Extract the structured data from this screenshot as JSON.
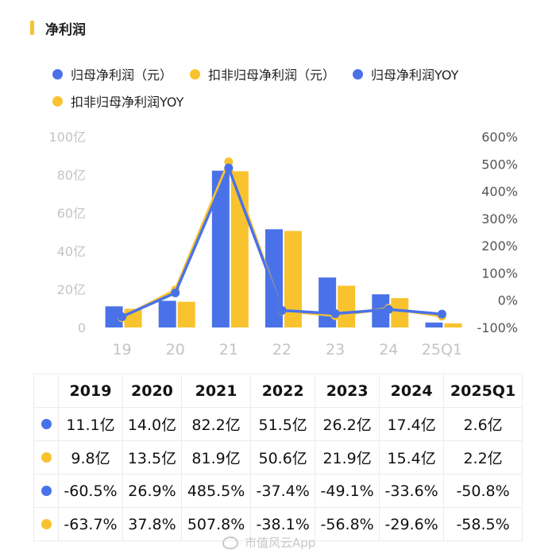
{
  "header": {
    "title": "净利润"
  },
  "legend": [
    {
      "label": "归母净利润（元）",
      "color": "#4a72e8"
    },
    {
      "label": "扣非归母净利润（元）",
      "color": "#f9c32f"
    },
    {
      "label": "归母净利润YOY",
      "color": "#4a72e8"
    },
    {
      "label": "扣非归母净利润YOY",
      "color": "#f9c32f"
    }
  ],
  "chart_data": {
    "type": "bar",
    "categories": [
      "19",
      "20",
      "21",
      "22",
      "23",
      "24",
      "25Q1"
    ],
    "series": [
      {
        "name": "归母净利润（元）",
        "type": "bar",
        "axis": "left",
        "color": "#4a72e8",
        "values": [
          11.1,
          14.0,
          82.2,
          51.5,
          26.2,
          17.4,
          2.6
        ]
      },
      {
        "name": "扣非归母净利润（元）",
        "type": "bar",
        "axis": "left",
        "color": "#f9c32f",
        "values": [
          9.8,
          13.5,
          81.9,
          50.6,
          21.9,
          15.4,
          2.2
        ]
      },
      {
        "name": "归母净利润YOY",
        "type": "line",
        "axis": "right",
        "color": "#4a72e8",
        "values": [
          -60.5,
          26.9,
          485.5,
          -37.4,
          -49.1,
          -33.6,
          -50.8
        ]
      },
      {
        "name": "扣非归母净利润YOY",
        "type": "line",
        "axis": "right",
        "color": "#f9c32f",
        "values": [
          -63.7,
          37.8,
          507.8,
          -38.1,
          -56.8,
          -29.6,
          -58.5
        ]
      }
    ],
    "left_axis": {
      "ticks": [
        "0",
        "20亿",
        "40亿",
        "60亿",
        "80亿",
        "100亿"
      ],
      "ylim": [
        0,
        100
      ]
    },
    "right_axis": {
      "ticks": [
        "-100%",
        "0%",
        "100%",
        "200%",
        "300%",
        "400%",
        "500%",
        "600%"
      ],
      "ylim": [
        -100,
        600
      ]
    },
    "grid": false,
    "legend_position": "top"
  },
  "table": {
    "headers": [
      "2019",
      "2020",
      "2021",
      "2022",
      "2023",
      "2024",
      "2025Q1"
    ],
    "rows": [
      {
        "color": "#4a72e8",
        "cells": [
          "11.1亿",
          "14.0亿",
          "82.2亿",
          "51.5亿",
          "26.2亿",
          "17.4亿",
          "2.6亿"
        ]
      },
      {
        "color": "#f9c32f",
        "cells": [
          "9.8亿",
          "13.5亿",
          "81.9亿",
          "50.6亿",
          "21.9亿",
          "15.4亿",
          "2.2亿"
        ]
      },
      {
        "color": "#4a72e8",
        "cells": [
          "-60.5%",
          "26.9%",
          "485.5%",
          "-37.4%",
          "-49.1%",
          "-33.6%",
          "-50.8%"
        ]
      },
      {
        "color": "#f9c32f",
        "cells": [
          "-63.7%",
          "37.8%",
          "507.8%",
          "-38.1%",
          "-56.8%",
          "-29.6%",
          "-58.5%"
        ]
      }
    ]
  },
  "watermark": {
    "text": "市值风云App"
  }
}
